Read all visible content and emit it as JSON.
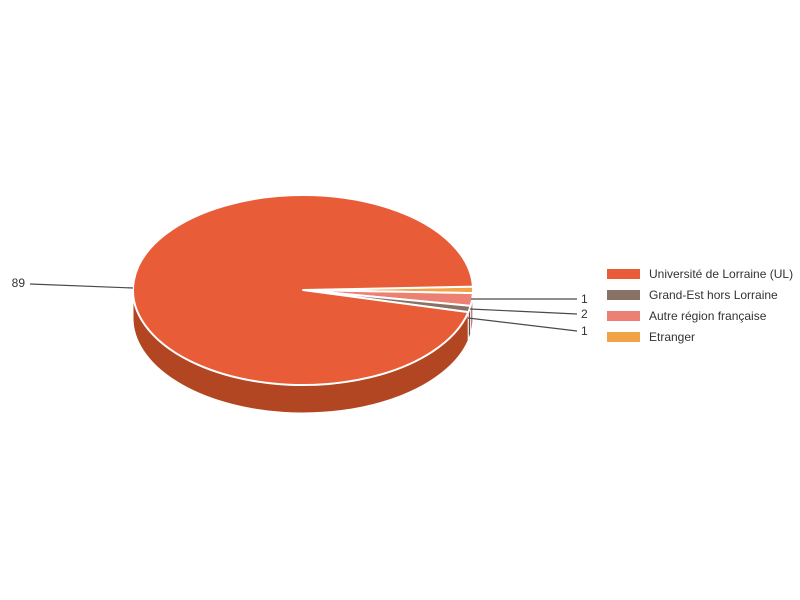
{
  "chart_data": {
    "type": "pie",
    "style": "3d",
    "title": "",
    "legend_position": "right",
    "background": "#FFFFFF",
    "callout_line_color": "#4A4A4A",
    "label_color": "#333333",
    "slice_border_color": "#FFFFFF",
    "slices": [
      {
        "label": "Université de Lorraine (UL)",
        "value": 89,
        "color": "#E85D38",
        "side_color": "#B24522"
      },
      {
        "label": "Grand-Est hors Lorraine",
        "value": 1,
        "color": "#877265",
        "side_color": "#5F5048"
      },
      {
        "label": "Autre région française",
        "value": 2,
        "color": "#EC8173",
        "side_color": "#B96055"
      },
      {
        "label": "Etranger",
        "value": 1,
        "color": "#F2A247",
        "side_color": "#BF7D31"
      }
    ]
  }
}
